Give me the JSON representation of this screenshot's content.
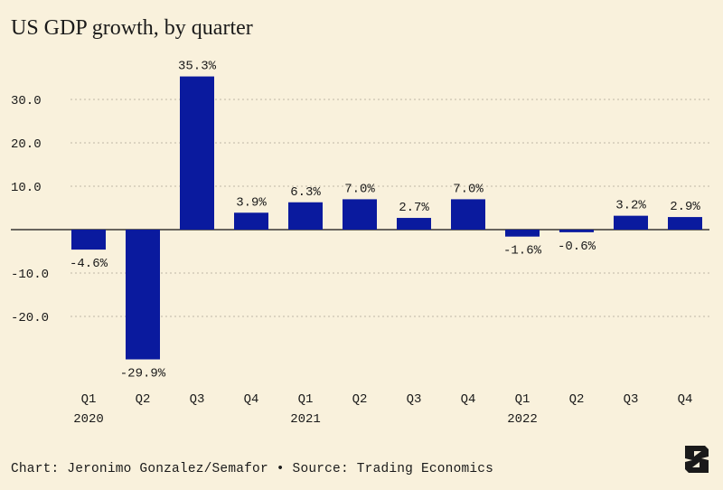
{
  "title": "US GDP growth, by quarter",
  "footer": "Chart: Jeronimo Gonzalez/Semafor • Source: Trading Economics",
  "colors": {
    "background": "#f9f1dc",
    "bar": "#0a1a9e",
    "grid": "#bfb8a6",
    "text": "#1a1a1a"
  },
  "chart_data": {
    "type": "bar",
    "title": "US GDP growth, by quarter",
    "xlabel": "",
    "ylabel": "",
    "ylim": [
      -32,
      37
    ],
    "grid": true,
    "yticks": [
      30,
      20,
      10,
      -10,
      -20
    ],
    "ytick_labels": [
      "30.0",
      "20.0",
      "10.0",
      "-10.0",
      "-20.0"
    ],
    "categories": [
      "Q1",
      "Q2",
      "Q3",
      "Q4",
      "Q1",
      "Q2",
      "Q3",
      "Q4",
      "Q1",
      "Q2",
      "Q3",
      "Q4"
    ],
    "years": [
      {
        "label": "2020",
        "index": 0
      },
      {
        "label": "2021",
        "index": 4
      },
      {
        "label": "2022",
        "index": 8
      }
    ],
    "values": [
      -4.6,
      -29.9,
      35.3,
      3.9,
      6.3,
      7.0,
      2.7,
      7.0,
      -1.6,
      -0.6,
      3.2,
      2.9
    ],
    "value_labels": [
      "-4.6%",
      "-29.9%",
      "35.3%",
      "3.9%",
      "6.3%",
      "7.0%",
      "2.7%",
      "7.0%",
      "-1.6%",
      "-0.6%",
      "3.2%",
      "2.9%"
    ]
  }
}
